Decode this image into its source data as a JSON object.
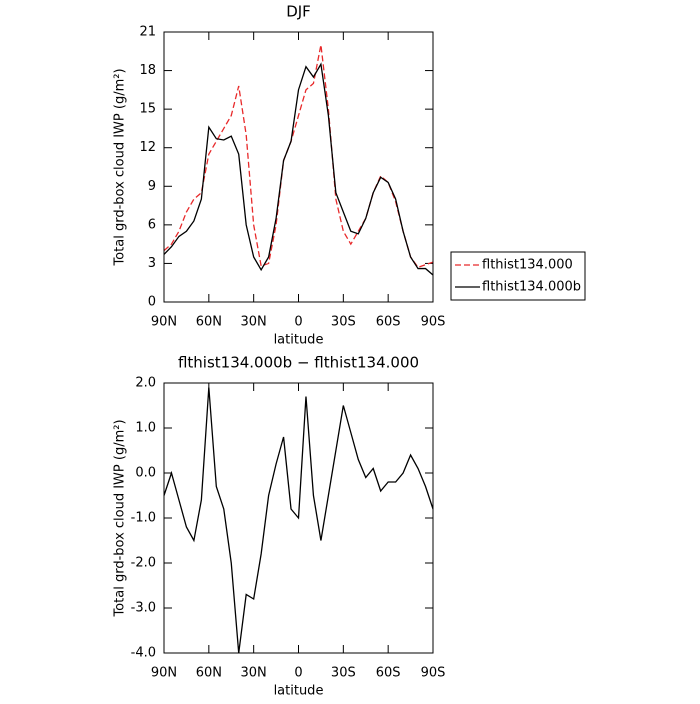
{
  "chart_data": [
    {
      "type": "line",
      "title": "DJF",
      "x_label": "latitude",
      "y_label": "Total grd-box cloud IWP (g/m²)",
      "x": [
        90,
        85,
        80,
        75,
        70,
        65,
        60,
        55,
        50,
        45,
        40,
        35,
        30,
        25,
        20,
        15,
        10,
        5,
        0,
        -5,
        -10,
        -15,
        -20,
        -25,
        -30,
        -35,
        -40,
        -45,
        -50,
        -55,
        -60,
        -65,
        -70,
        -75,
        -80,
        -85,
        -90
      ],
      "xlim": [
        90,
        -90
      ],
      "xticks": [
        {
          "value": 90,
          "label": "90N"
        },
        {
          "value": 60,
          "label": "60N"
        },
        {
          "value": 30,
          "label": "30N"
        },
        0,
        {
          "value": -30,
          "label": "30S"
        },
        {
          "value": -60,
          "label": "60S"
        },
        {
          "value": -90,
          "label": "90S"
        }
      ],
      "ylim": [
        0,
        21
      ],
      "yticks": [
        0,
        3,
        6,
        9,
        12,
        15,
        18,
        21
      ],
      "legend": "right",
      "series": [
        {
          "name": "flthist134.000",
          "color": "#e8292a",
          "dashed": true,
          "values": [
            4.0,
            4.5,
            5.5,
            7.0,
            8.0,
            8.5,
            11.5,
            12.5,
            13.5,
            14.5,
            16.8,
            13.0,
            6.0,
            2.8,
            3.0,
            6.0,
            11.0,
            12.5,
            14.5,
            16.5,
            17.0,
            20.0,
            15.0,
            8.0,
            5.5,
            4.5,
            5.5,
            6.5,
            8.5,
            9.8,
            9.3,
            7.8,
            5.5,
            3.5,
            2.7,
            2.9,
            3.1
          ]
        },
        {
          "name": "flthist134.000b",
          "color": "#000000",
          "dashed": false,
          "values": [
            3.7,
            4.3,
            5.1,
            5.5,
            6.3,
            8.0,
            13.6,
            12.7,
            12.6,
            12.9,
            11.5,
            6.0,
            3.5,
            2.5,
            3.5,
            6.5,
            11.0,
            12.5,
            16.5,
            18.3,
            17.5,
            18.5,
            14.5,
            8.5,
            7.0,
            5.5,
            5.3,
            6.5,
            8.5,
            9.7,
            9.3,
            8.0,
            5.5,
            3.5,
            2.6,
            2.6,
            2.1
          ]
        }
      ]
    },
    {
      "type": "line",
      "title": "flthist134.000b − flthist134.000",
      "x_label": "latitude",
      "y_label": "Total grd-box cloud IWP (g/m²)",
      "x": [
        90,
        85,
        80,
        75,
        70,
        65,
        60,
        55,
        50,
        45,
        40,
        35,
        30,
        25,
        20,
        15,
        10,
        5,
        0,
        -5,
        -10,
        -15,
        -20,
        -25,
        -30,
        -35,
        -40,
        -45,
        -50,
        -55,
        -60,
        -65,
        -70,
        -75,
        -80,
        -85,
        -90
      ],
      "xlim": [
        90,
        -90
      ],
      "xticks": [
        {
          "value": 90,
          "label": "90N"
        },
        {
          "value": 60,
          "label": "60N"
        },
        {
          "value": 30,
          "label": "30N"
        },
        0,
        {
          "value": -30,
          "label": "30S"
        },
        {
          "value": -60,
          "label": "60S"
        },
        {
          "value": -90,
          "label": "90S"
        }
      ],
      "ylim": [
        -4,
        2
      ],
      "yticks": [
        {
          "value": -4,
          "label": "-4.0"
        },
        {
          "value": -3,
          "label": "-3.0"
        },
        {
          "value": -2,
          "label": "-2.0"
        },
        {
          "value": -1,
          "label": "-1.0"
        },
        {
          "value": 0,
          "label": "0.0"
        },
        {
          "value": 1,
          "label": "1.0"
        },
        {
          "value": 2,
          "label": "2.0"
        }
      ],
      "series": [
        {
          "color": "#000000",
          "dashed": false,
          "values": [
            -0.5,
            0.0,
            -0.6,
            -1.2,
            -1.5,
            -0.6,
            1.9,
            -0.3,
            -0.8,
            -2.0,
            -4.0,
            -2.7,
            -2.8,
            -1.8,
            -0.5,
            0.2,
            0.8,
            -0.8,
            -1.0,
            1.7,
            -0.5,
            -1.5,
            -0.5,
            0.5,
            1.5,
            0.9,
            0.3,
            -0.1,
            0.1,
            -0.4,
            -0.2,
            -0.2,
            0.0,
            0.4,
            0.1,
            -0.3,
            -0.8
          ]
        }
      ]
    }
  ]
}
